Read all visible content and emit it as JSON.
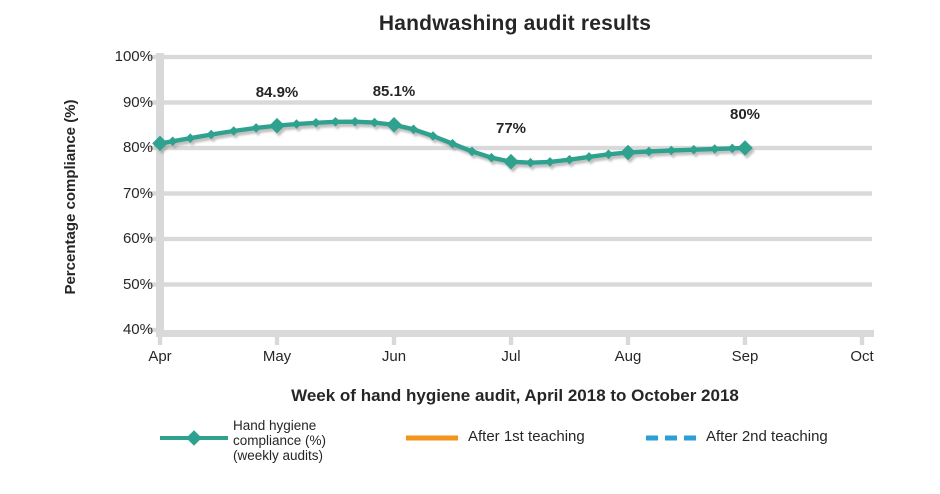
{
  "chart_data": {
    "type": "line",
    "title": "Handwashing audit results",
    "xlabel": "Week of hand hygiene audit, April 2018 to October 2018",
    "ylabel": "Percentage compliance (%)",
    "x_ticks": [
      "Apr",
      "May",
      "Jun",
      "Jul",
      "Aug",
      "Sep",
      "Oct"
    ],
    "y_ticks": [
      "100%",
      "90%",
      "80%",
      "70%",
      "60%",
      "50%",
      "40%"
    ],
    "ylim": [
      40,
      100
    ],
    "grid": true,
    "legend_position": "bottom",
    "series": [
      {
        "name": "Hand hygiene compliance (%) (weekly audits)",
        "legend_lines": [
          "Hand hygiene",
          "compliance (%)",
          "(weekly audits)"
        ],
        "color": "#2FA28F",
        "marker": "diamond",
        "x": [
          "Apr",
          "May",
          "Jun",
          "Jul",
          "Aug",
          "Sep"
        ],
        "values": [
          81,
          84.9,
          85.1,
          77,
          79,
          80
        ],
        "point_labels": [
          "",
          "84.9%",
          "85.1%",
          "77%",
          "",
          "80%"
        ]
      }
    ],
    "event_lines": [
      {
        "label": "After 1st teaching",
        "color": "#F2941E",
        "style": "solid",
        "x_position": 3.76
      },
      {
        "label": "After 2nd teaching",
        "color": "#2E9FD4",
        "style": "dashed",
        "x_position": 5.72
      }
    ],
    "text_color": "#262626",
    "grid_color": "#D9D9D9"
  }
}
